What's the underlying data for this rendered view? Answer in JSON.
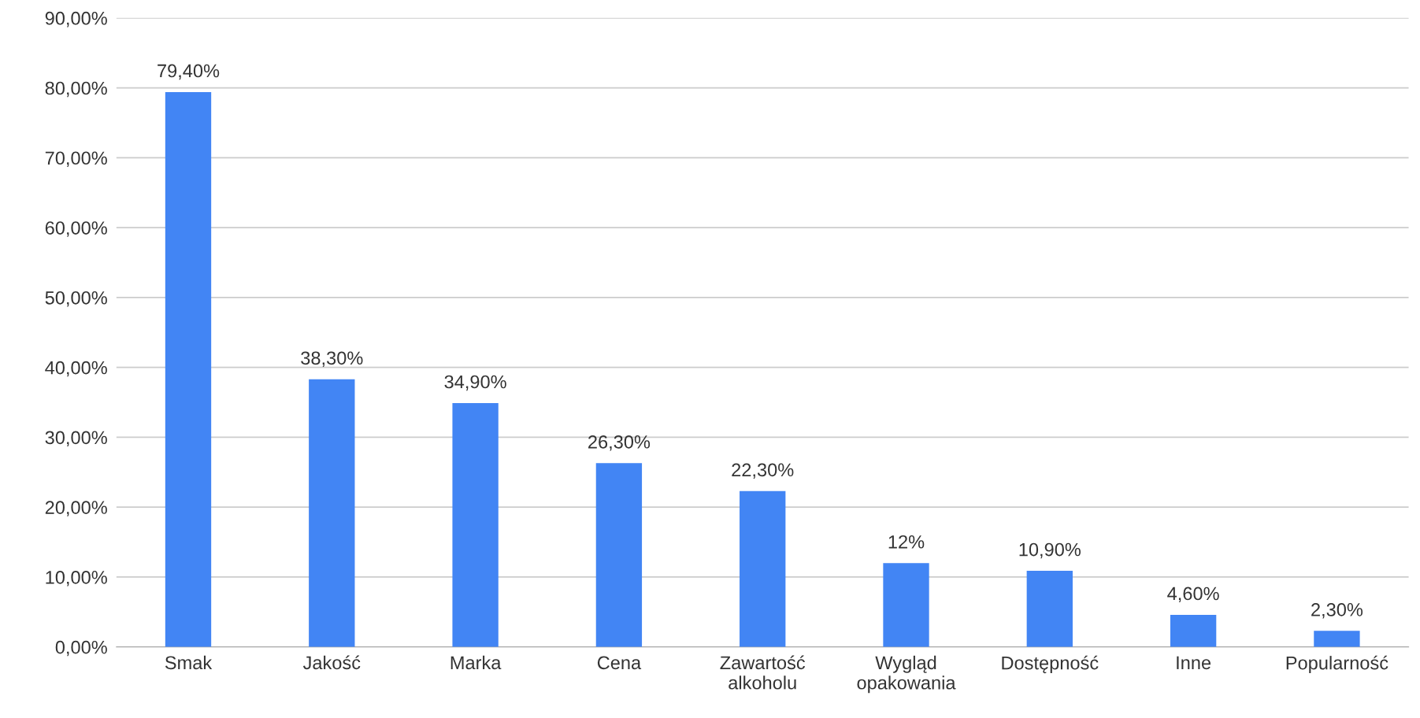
{
  "chart_data": {
    "type": "bar",
    "categories": [
      "Smak",
      "Jakość",
      "Marka",
      "Cena",
      "Zawartość\nalkoholu",
      "Wygląd\nopakowania",
      "Dostępność",
      "Inne",
      "Popularność"
    ],
    "values": [
      79.4,
      38.3,
      34.9,
      26.3,
      22.3,
      12,
      10.9,
      4.6,
      2.3
    ],
    "value_labels": [
      "79,40%",
      "38,30%",
      "34,90%",
      "26,30%",
      "22,30%",
      "12%",
      "10,90%",
      "4,60%",
      "2,30%"
    ],
    "color": "#4285f4",
    "ylim": [
      0,
      90
    ],
    "yticks": [
      {
        "value": 0,
        "label": "0,00%"
      },
      {
        "value": 10,
        "label": "10,00%"
      },
      {
        "value": 20,
        "label": "20,00%"
      },
      {
        "value": 30,
        "label": "30,00%"
      },
      {
        "value": 40,
        "label": "40,00%"
      },
      {
        "value": 50,
        "label": "50,00%"
      },
      {
        "value": 60,
        "label": "60,00%"
      },
      {
        "value": 70,
        "label": "70,00%"
      },
      {
        "value": 80,
        "label": "80,00%"
      },
      {
        "value": 90,
        "label": "90,00%"
      }
    ],
    "grid": "y"
  }
}
